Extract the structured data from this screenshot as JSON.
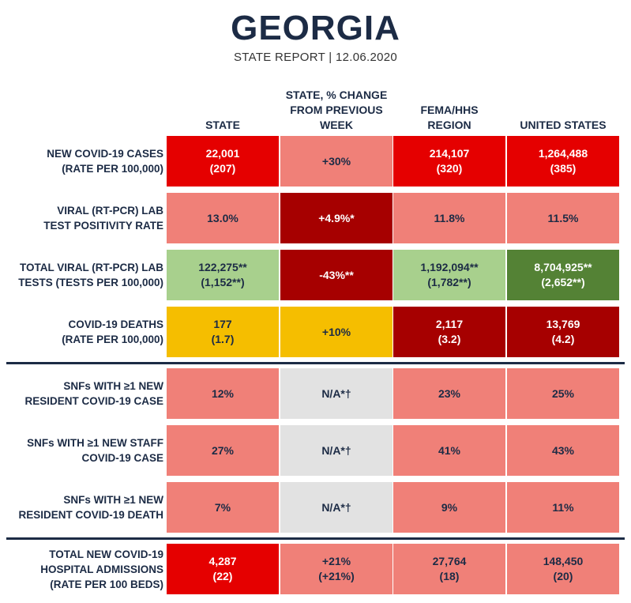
{
  "header": {
    "title": "GEORGIA",
    "subtitle": "STATE REPORT | 12.06.2020"
  },
  "columns": [
    "STATE",
    "STATE, % CHANGE\nFROM PREVIOUS\nWEEK",
    "FEMA/HHS\nREGION",
    "UNITED STATES"
  ],
  "colors": {
    "red": "#e50000",
    "salmon": "#f08078",
    "dark_red": "#a60000",
    "light_green": "#a8d08d",
    "dark_green": "#548235",
    "yellow": "#f5be00",
    "gray": "#e2e2e2",
    "navy": "#1c2b45"
  },
  "rows": [
    {
      "label": "NEW COVID-19 CASES\n(RATE PER 100,000)",
      "cells": [
        {
          "text": "22,001\n(207)",
          "color": "red"
        },
        {
          "text": "+30%",
          "color": "salmon"
        },
        {
          "text": "214,107\n(320)",
          "color": "red"
        },
        {
          "text": "1,264,488\n(385)",
          "color": "red"
        }
      ]
    },
    {
      "label": "VIRAL (RT-PCR) LAB\nTEST POSITIVITY RATE",
      "cells": [
        {
          "text": "13.0%",
          "color": "salmon"
        },
        {
          "text": "+4.9%*",
          "color": "dark_red"
        },
        {
          "text": "11.8%",
          "color": "salmon"
        },
        {
          "text": "11.5%",
          "color": "salmon"
        }
      ]
    },
    {
      "label": "TOTAL VIRAL (RT-PCR) LAB\nTESTS (TESTS PER 100,000)",
      "cells": [
        {
          "text": "122,275**\n(1,152**)",
          "color": "light_green"
        },
        {
          "text": "-43%**",
          "color": "dark_red"
        },
        {
          "text": "1,192,094**\n(1,782**)",
          "color": "light_green"
        },
        {
          "text": "8,704,925**\n(2,652**)",
          "color": "dark_green"
        }
      ]
    },
    {
      "label": "COVID-19 DEATHS\n(RATE PER 100,000)",
      "cells": [
        {
          "text": "177\n(1.7)",
          "color": "yellow"
        },
        {
          "text": "+10%",
          "color": "yellow"
        },
        {
          "text": "2,117\n(3.2)",
          "color": "dark_red"
        },
        {
          "text": "13,769\n(4.2)",
          "color": "dark_red"
        }
      ]
    },
    {
      "label": "SNFs WITH ≥1 NEW\nRESIDENT COVID-19 CASE",
      "cells": [
        {
          "text": "12%",
          "color": "salmon"
        },
        {
          "text": "N/A*†",
          "color": "gray"
        },
        {
          "text": "23%",
          "color": "salmon"
        },
        {
          "text": "25%",
          "color": "salmon"
        }
      ]
    },
    {
      "label": "SNFs WITH ≥1 NEW STAFF\nCOVID-19 CASE",
      "cells": [
        {
          "text": "27%",
          "color": "salmon"
        },
        {
          "text": "N/A*†",
          "color": "gray"
        },
        {
          "text": "41%",
          "color": "salmon"
        },
        {
          "text": "43%",
          "color": "salmon"
        }
      ]
    },
    {
      "label": "SNFs WITH ≥1 NEW\nRESIDENT COVID-19 DEATH",
      "cells": [
        {
          "text": "7%",
          "color": "salmon"
        },
        {
          "text": "N/A*†",
          "color": "gray"
        },
        {
          "text": "9%",
          "color": "salmon"
        },
        {
          "text": "11%",
          "color": "salmon"
        }
      ]
    },
    {
      "label": "TOTAL NEW COVID-19\nHOSPITAL ADMISSIONS\n(RATE PER 100 BEDS)",
      "cells": [
        {
          "text": "4,287\n(22)",
          "color": "red"
        },
        {
          "text": "+21%\n(+21%)",
          "color": "salmon"
        },
        {
          "text": "27,764\n(18)",
          "color": "salmon"
        },
        {
          "text": "148,450\n(20)",
          "color": "salmon"
        }
      ]
    }
  ]
}
